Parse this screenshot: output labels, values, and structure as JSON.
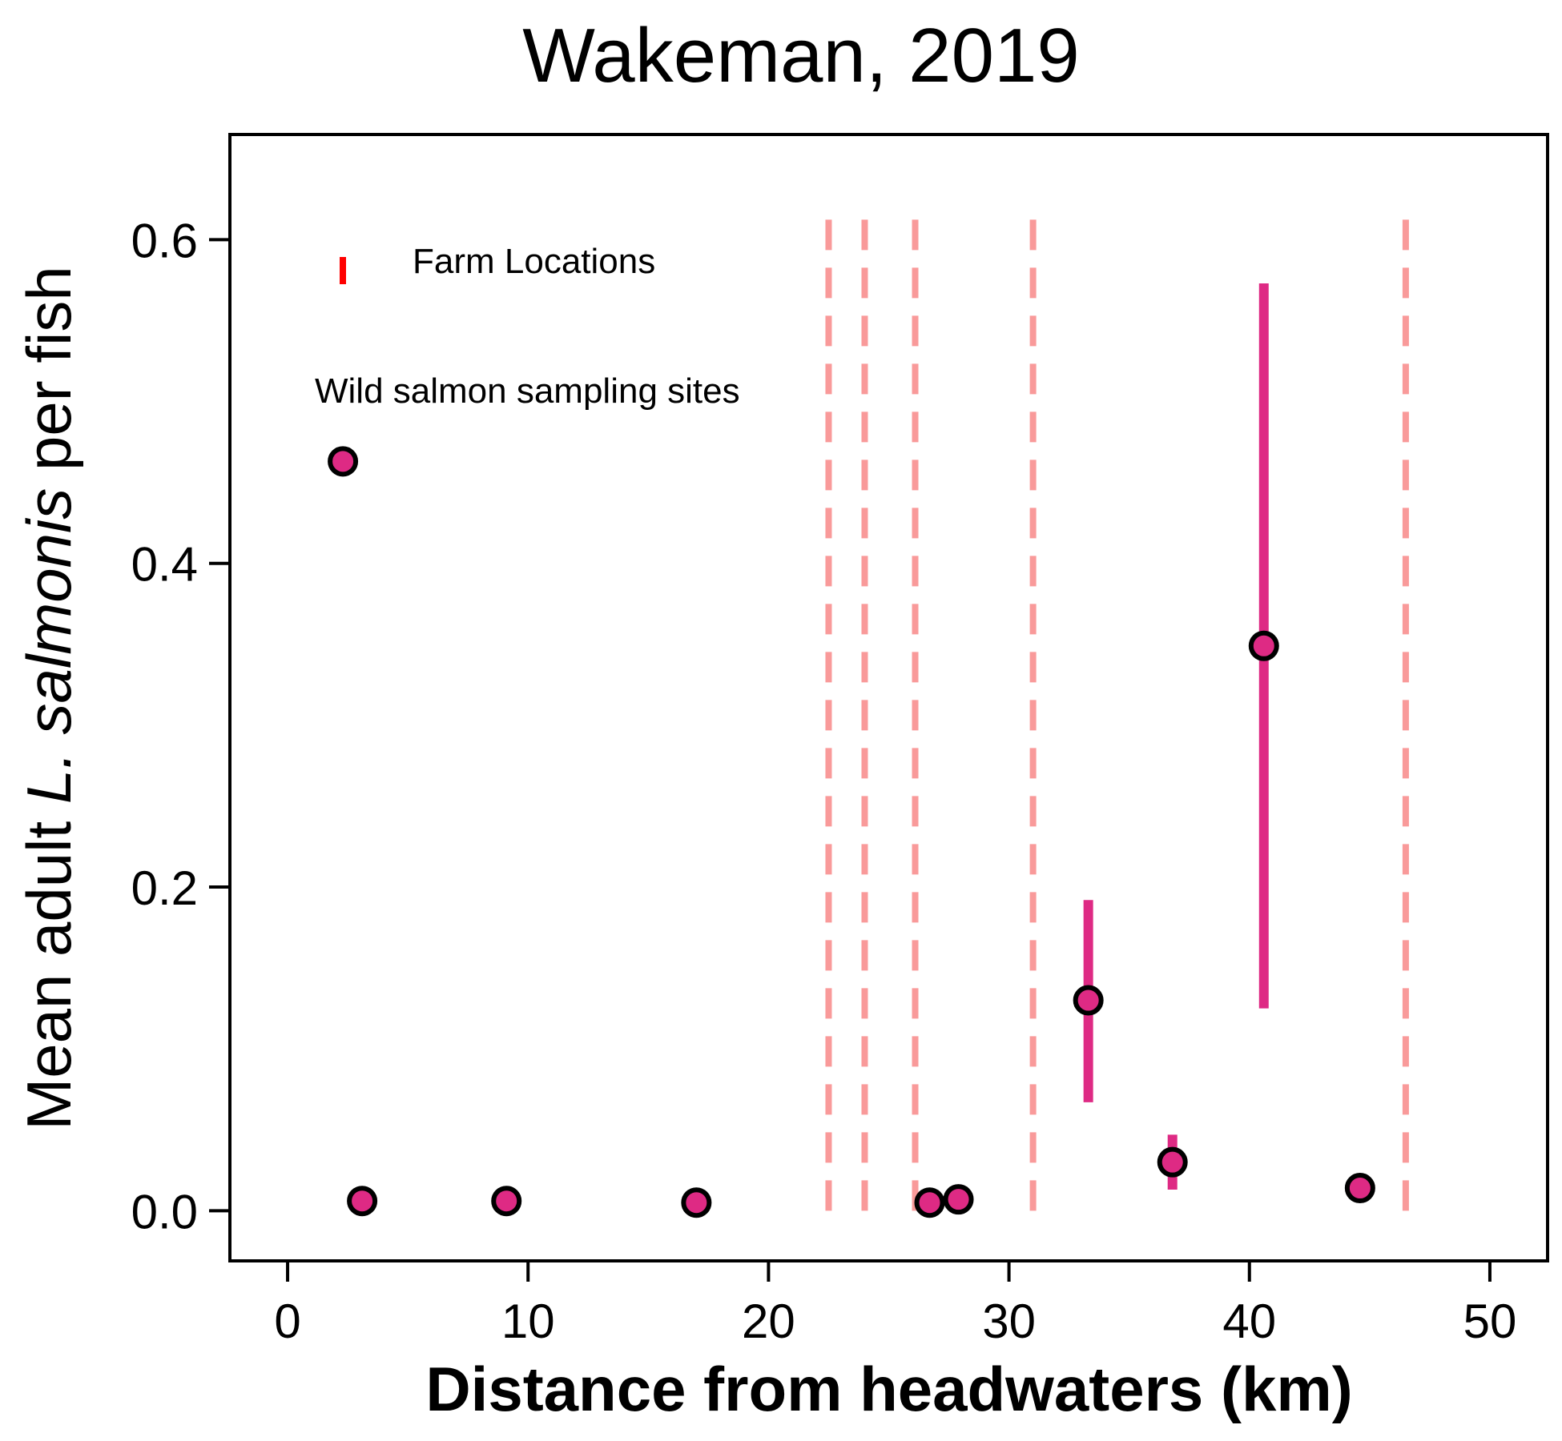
{
  "chart_data": {
    "type": "scatter",
    "title": "Wakeman, 2019",
    "xlabel": "Distance from headwaters (km)",
    "ylabel": {
      "before": "Mean adult ",
      "italic": "L. salmonis",
      "after": "  per fish"
    },
    "xlim": [
      -2.4,
      52.4
    ],
    "ylim": [
      -0.031,
      0.665
    ],
    "x_ticks": [
      0,
      10,
      20,
      30,
      40,
      50
    ],
    "y_ticks": [
      0.0,
      0.2,
      0.4,
      0.6
    ],
    "x_tick_labels": [
      "0",
      "10",
      "20",
      "30",
      "40",
      "50"
    ],
    "y_tick_labels": [
      "0.0",
      "0.2",
      "0.4",
      "0.6"
    ],
    "grid": false,
    "series": [
      {
        "name": "Wild salmon sampling sites",
        "color": "#DE2A84",
        "edge_color": "#000000",
        "points": [
          {
            "x": 3.1,
            "y": 0.006
          },
          {
            "x": 9.1,
            "y": 0.006
          },
          {
            "x": 17.0,
            "y": 0.005
          },
          {
            "x": 26.7,
            "y": 0.005
          },
          {
            "x": 27.9,
            "y": 0.007
          },
          {
            "x": 33.3,
            "y": 0.13,
            "ylow": 0.067,
            "yhigh": 0.192
          },
          {
            "x": 36.8,
            "y": 0.03,
            "ylow": 0.013,
            "yhigh": 0.047
          },
          {
            "x": 40.6,
            "y": 0.349,
            "ylow": 0.125,
            "yhigh": 0.573
          },
          {
            "x": 44.6,
            "y": 0.014,
            "ylow": 0.008,
            "yhigh": 0.02
          }
        ]
      }
    ],
    "farm_locations": {
      "name": "Farm Locations",
      "color": "#F99A9A",
      "legend_color": "#FF0000",
      "x": [
        22.5,
        24.0,
        26.1,
        31.0,
        46.5
      ],
      "y_range": [
        0.0,
        0.615
      ]
    },
    "legend_placement": "upper-left",
    "annotation_point": {
      "x": 2.3,
      "y": 0.463
    }
  }
}
